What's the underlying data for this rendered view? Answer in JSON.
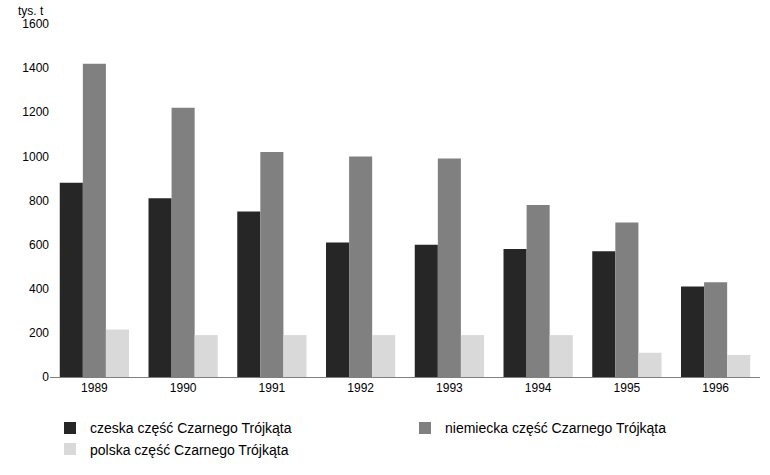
{
  "chart_data": {
    "type": "bar",
    "ylabel": "tys. t",
    "categories": [
      "1989",
      "1990",
      "1991",
      "1992",
      "1993",
      "1994",
      "1995",
      "1996"
    ],
    "series": [
      {
        "name": "czeska część Czarnego Trójkąta",
        "color": "#262626",
        "values": [
          880,
          810,
          750,
          610,
          600,
          580,
          570,
          410
        ]
      },
      {
        "name": "niemiecka część Czarnego Trójkąta",
        "color": "#808080",
        "values": [
          1420,
          1220,
          1020,
          1000,
          990,
          780,
          700,
          430
        ]
      },
      {
        "name": "polska część Czarnego Trójkąta",
        "color": "#d9d9d9",
        "values": [
          215,
          190,
          190,
          190,
          190,
          190,
          110,
          100
        ]
      }
    ],
    "ylim": [
      0,
      1600
    ],
    "yticks": [
      0,
      200,
      400,
      600,
      800,
      1000,
      1200,
      1400,
      1600
    ],
    "grid": false,
    "legend": "bottom"
  }
}
